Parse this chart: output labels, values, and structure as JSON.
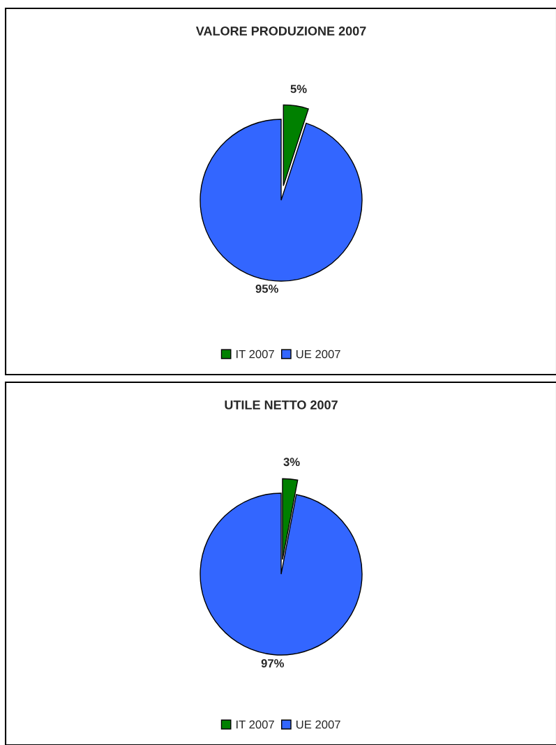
{
  "chart_data": [
    {
      "type": "pie",
      "title": "VALORE PRODUZIONE 2007",
      "categories": [
        "IT 2007",
        "UE 2007"
      ],
      "values": [
        5,
        95
      ],
      "colors": [
        "#008000",
        "#3366ff"
      ],
      "value_labels": [
        "5%",
        "95%"
      ],
      "legend": "bottom"
    },
    {
      "type": "pie",
      "title": "UTILE NETTO 2007",
      "categories": [
        "IT 2007",
        "UE 2007"
      ],
      "values": [
        3,
        97
      ],
      "colors": [
        "#008000",
        "#3366ff"
      ],
      "value_labels": [
        "3%",
        "97%"
      ],
      "legend": "bottom"
    }
  ]
}
